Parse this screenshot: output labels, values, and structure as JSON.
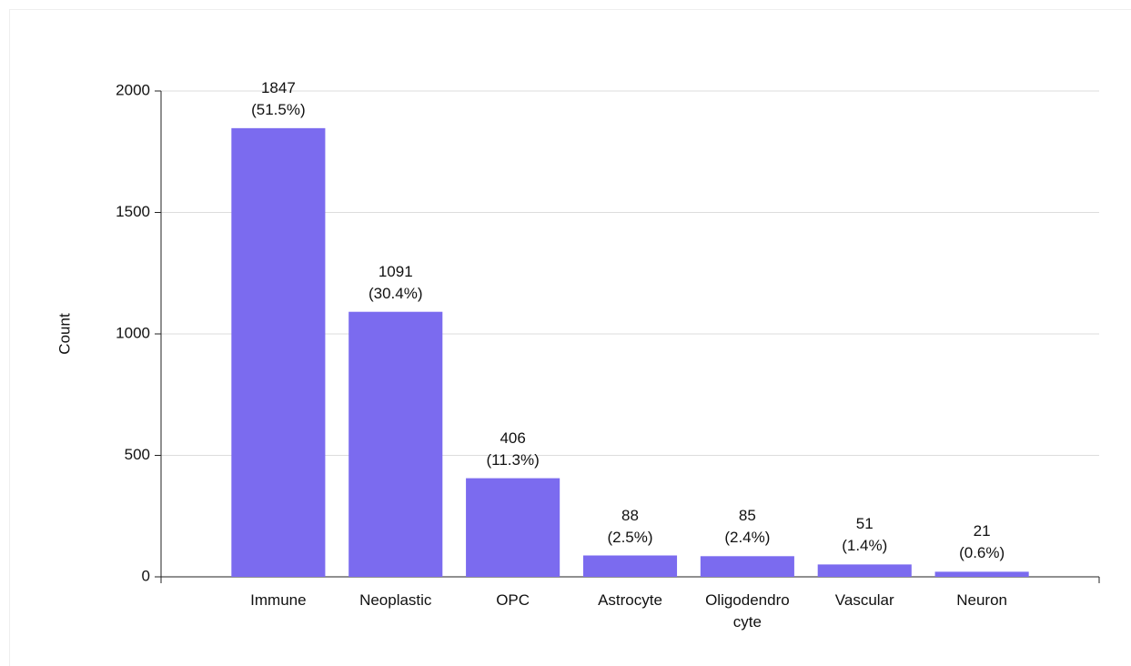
{
  "chart_data": {
    "type": "bar",
    "y_label": "Count",
    "categories": [
      "Immune",
      "Neoplastic",
      "OPC",
      "Astrocyte",
      "Oligodendrocyte",
      "Vascular",
      "Neuron"
    ],
    "values": [
      1847,
      1091,
      406,
      88,
      85,
      51,
      21
    ],
    "value_labels": [
      "1847\n(51.5%)",
      "1091\n(30.4%)",
      "406\n(11.3%)",
      "88\n(2.5%)",
      "85\n(2.4%)",
      "51\n(1.4%)",
      "21\n(0.6%)"
    ],
    "color": "#7b6bef",
    "ylim": [
      0,
      2000
    ],
    "yticks": [
      0,
      500,
      1000,
      1500,
      2000
    ],
    "grid": true
  }
}
